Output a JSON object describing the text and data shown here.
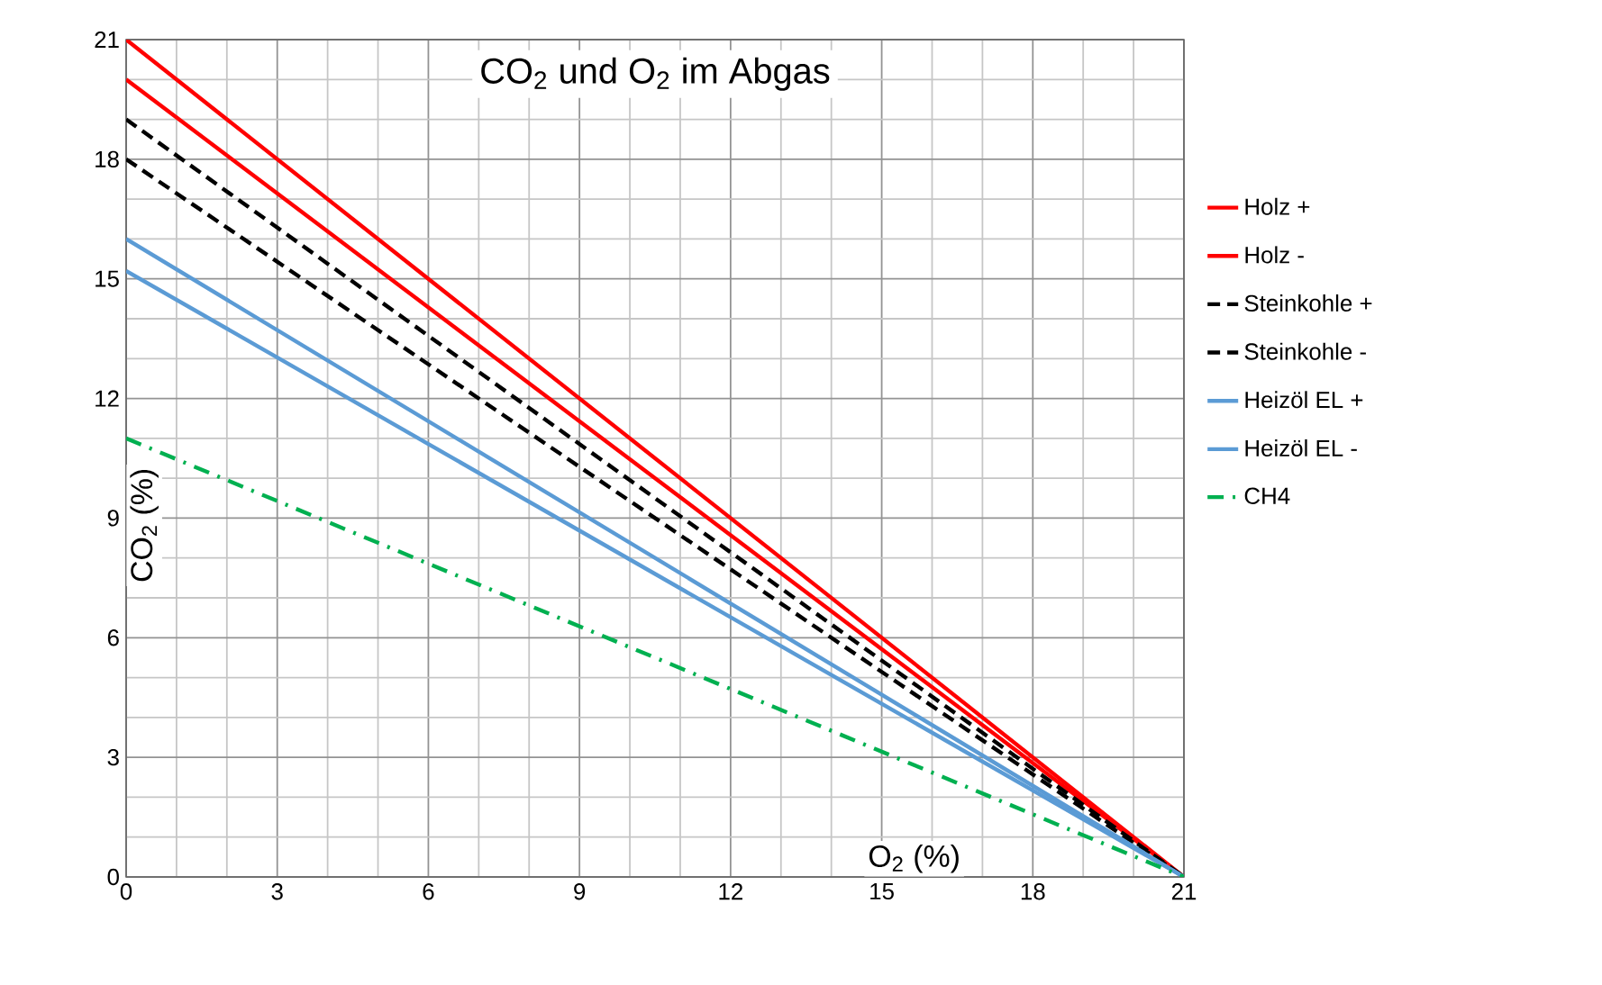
{
  "chart_data": {
    "type": "line",
    "title": "CO$_{2}$ und O$_{2}$ im Abgas",
    "xlabel": "O$_{2}$ (%)",
    "ylabel": "CO$_{2}$ (%)",
    "x": [
      0,
      21
    ],
    "xlim": [
      0,
      21
    ],
    "ylim": [
      0,
      21
    ],
    "xticks": [
      0,
      3,
      6,
      9,
      12,
      15,
      18,
      21
    ],
    "yticks": [
      0,
      3,
      6,
      9,
      12,
      15,
      18,
      21
    ],
    "grid": true,
    "legend": "right",
    "series": [
      {
        "name": "Holz +",
        "color": "#ff0000",
        "line_style": "solid",
        "values": [
          21,
          0
        ]
      },
      {
        "name": "Holz -",
        "color": "#ff0000",
        "line_style": "solid",
        "values": [
          20,
          0
        ]
      },
      {
        "name": "Steinkohle +",
        "color": "#000000",
        "line_style": "dashed",
        "values": [
          19,
          0
        ]
      },
      {
        "name": "Steinkohle -",
        "color": "#000000",
        "line_style": "dashed",
        "values": [
          18,
          0
        ]
      },
      {
        "name": "Heizöl EL +",
        "color": "#5b9bd5",
        "line_style": "solid",
        "values": [
          16,
          0
        ]
      },
      {
        "name": "Heizöl EL -",
        "color": "#5b9bd5",
        "line_style": "solid",
        "values": [
          15.2,
          0
        ]
      },
      {
        "name": "CH4",
        "color": "#00b050",
        "line_style": "dashdot",
        "values": [
          11,
          0
        ]
      }
    ]
  }
}
